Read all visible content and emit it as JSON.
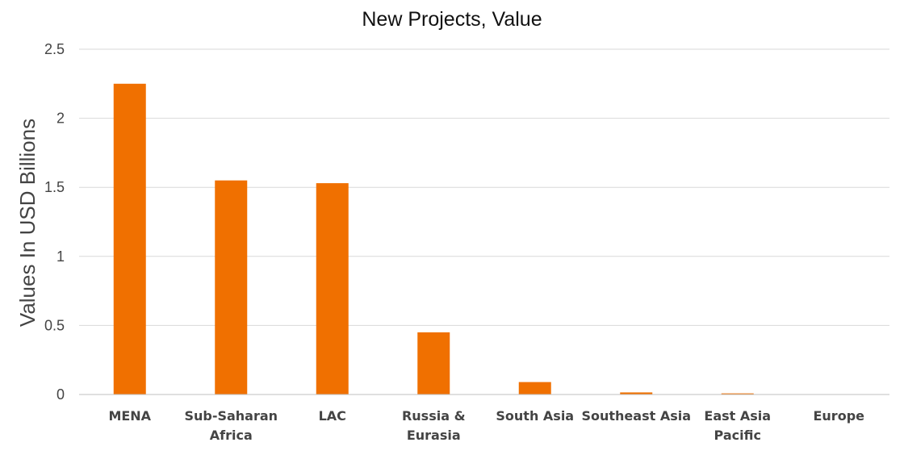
{
  "chart_data": {
    "type": "bar",
    "title": "New Projects, Value",
    "ylabel": "Values In USD Billions",
    "xlabel": "",
    "ylim": [
      0,
      2.5
    ],
    "yticks": [
      "0",
      "0.5",
      "1",
      "1.5",
      "2",
      "2.5"
    ],
    "grid": true,
    "legend": "none",
    "bar_color": "#F07000",
    "categories": [
      [
        "MENA"
      ],
      [
        "Sub-Saharan",
        "Africa"
      ],
      [
        "LAC"
      ],
      [
        "Russia &",
        "Eurasia"
      ],
      [
        "South Asia"
      ],
      [
        "Southeast Asia"
      ],
      [
        "East Asia",
        "Pacific"
      ],
      [
        "Europe"
      ]
    ],
    "values": [
      2.25,
      1.55,
      1.53,
      0.45,
      0.09,
      0.015,
      0.008,
      0.0
    ]
  }
}
